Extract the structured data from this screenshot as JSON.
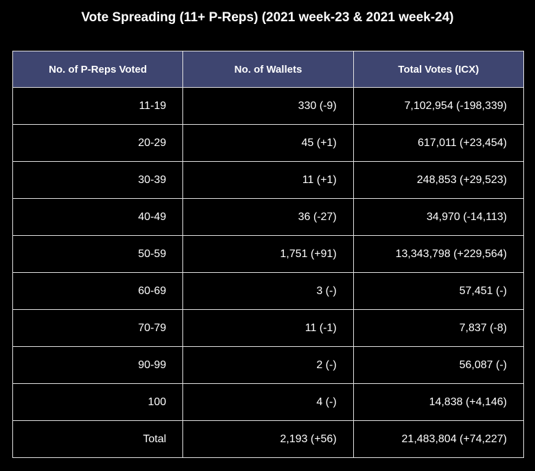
{
  "chart_data": {
    "type": "table",
    "title": "Vote Spreading (11+ P-Reps) (2021 week-23 & 2021 week-24)",
    "columns": [
      "No. of P-Reps Voted",
      "No. of Wallets",
      "Total Votes (ICX)"
    ],
    "rows": [
      [
        "11-19",
        "330 (-9)",
        "7,102,954 (-198,339)"
      ],
      [
        "20-29",
        "45 (+1)",
        "617,011 (+23,454)"
      ],
      [
        "30-39",
        "11 (+1)",
        "248,853 (+29,523)"
      ],
      [
        "40-49",
        "36 (-27)",
        "34,970 (-14,113)"
      ],
      [
        "50-59",
        "1,751 (+91)",
        "13,343,798 (+229,564)"
      ],
      [
        "60-69",
        "3 (-)",
        "57,451 (-)"
      ],
      [
        "70-79",
        "11 (-1)",
        "7,837 (-8)"
      ],
      [
        "90-99",
        "2 (-)",
        "56,087 (-)"
      ],
      [
        "100",
        "4 (-)",
        "14,838 (+4,146)"
      ],
      [
        "Total",
        "2,193 (+56)",
        "21,483,804 (+74,227)"
      ]
    ]
  },
  "colors": {
    "background": "#000000",
    "header_fill": "#3e4570",
    "border": "#e6e6e6",
    "text": "#ffffff"
  }
}
